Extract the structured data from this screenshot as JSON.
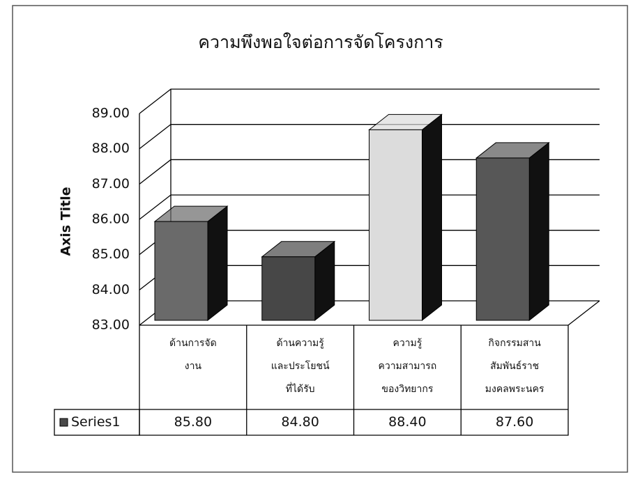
{
  "chart_data": {
    "type": "bar3d",
    "title": "ความพึงพอใจต่อการจัดโครงการ",
    "y_axis_title": "Axis Title",
    "categories": [
      [
        "ด้านการจัด",
        "งาน"
      ],
      [
        "ด้านความรู้",
        "และประโยชน์",
        "ที่ได้รับ"
      ],
      [
        "ความรู้",
        "ความสามารถ",
        "ของวิทยากร"
      ],
      [
        "กิจกรรมสาน",
        "สัมพันธ์ราช",
        "มงคลพระนคร"
      ]
    ],
    "series": [
      {
        "name": "Series1",
        "color": "#4a4a4a",
        "point_colors": [
          "#6a6a6a",
          "#474747",
          "#dcdcdc",
          "#575757"
        ],
        "values": [
          85.8,
          84.8,
          88.4,
          87.6
        ],
        "value_labels": [
          "85.80",
          "84.80",
          "88.40",
          "87.60"
        ]
      }
    ],
    "ylim": [
      83,
      89
    ],
    "yticks": [
      {
        "value": 83,
        "label": "83.00"
      },
      {
        "value": 84,
        "label": "84.00"
      },
      {
        "value": 85,
        "label": "85.00"
      },
      {
        "value": 86,
        "label": "86.00"
      },
      {
        "value": 87,
        "label": "87.00"
      },
      {
        "value": 88,
        "label": "88.00"
      },
      {
        "value": 89,
        "label": "89.00"
      }
    ],
    "grid": true,
    "data_table": true
  }
}
